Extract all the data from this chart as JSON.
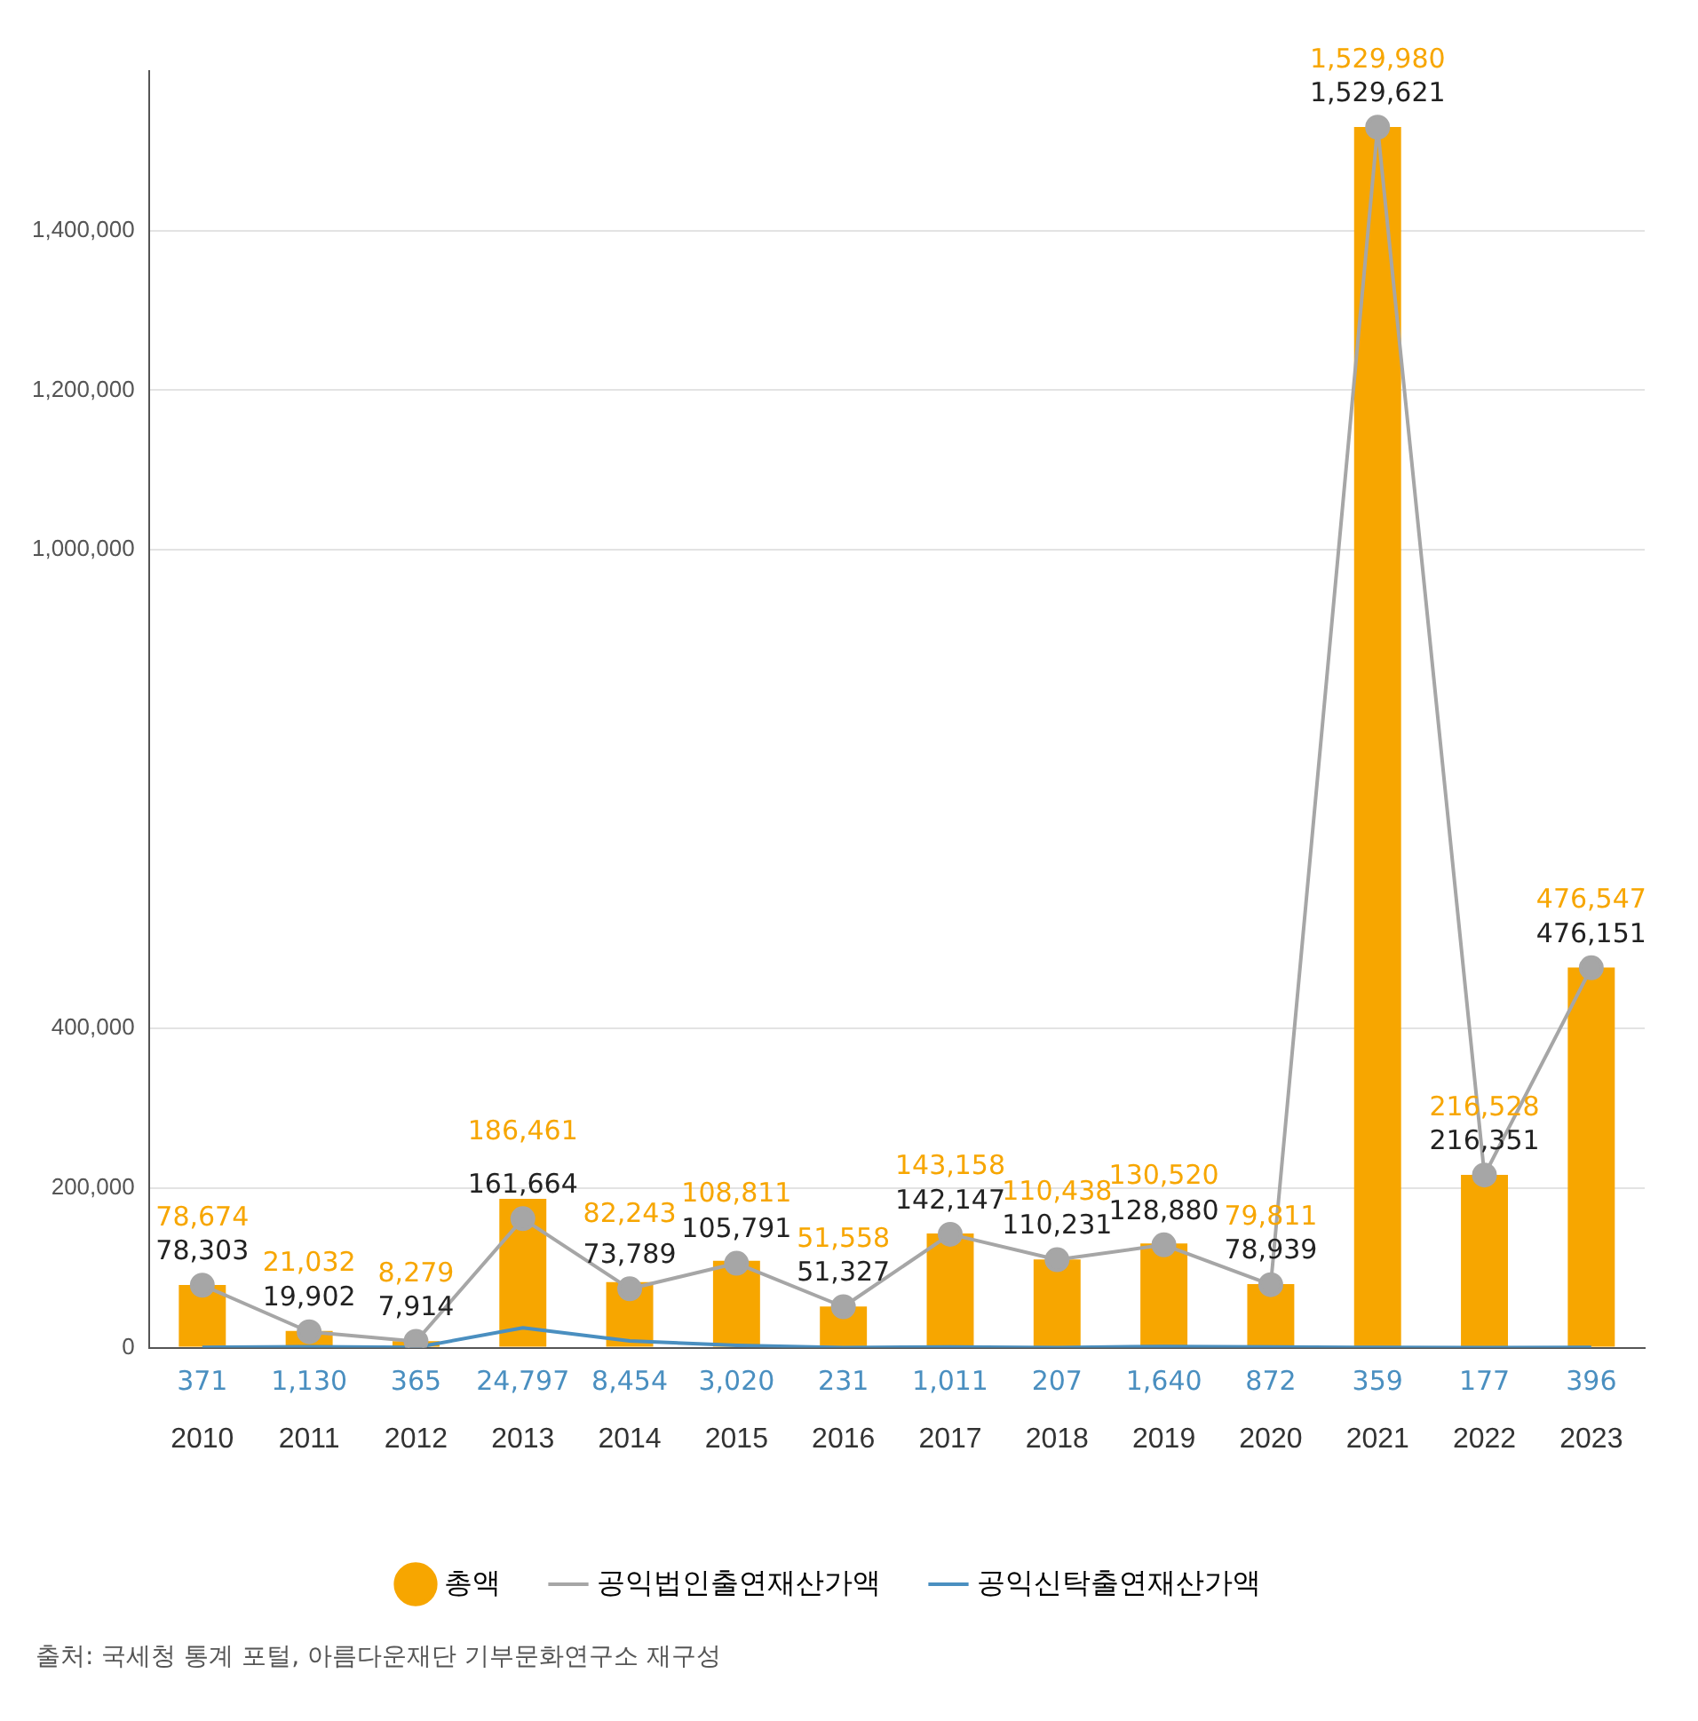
{
  "chart_data": {
    "type": "bar",
    "categories": [
      "2010",
      "2011",
      "2012",
      "2013",
      "2014",
      "2015",
      "2016",
      "2017",
      "2018",
      "2019",
      "2020",
      "2021",
      "2022",
      "2023"
    ],
    "series": [
      {
        "name": "총액",
        "color": "#f7a600",
        "values": [
          78674,
          21032,
          8279,
          186461,
          82243,
          108811,
          51558,
          143158,
          110438,
          130520,
          79811,
          1529980,
          216528,
          476547
        ],
        "value_labels": [
          "78,674",
          "21,032",
          "8,279",
          "186,461",
          "82,243",
          "108,811",
          "51,558",
          "143,158",
          "110,438",
          "130,520",
          "79,811",
          "1,529,980",
          "216,528",
          "476,547"
        ]
      },
      {
        "name": "공익법인출연재산가액",
        "type": "line",
        "color": "#a6a6a6",
        "marker": "circle",
        "values": [
          78303,
          19902,
          7914,
          161664,
          73789,
          105791,
          51327,
          142147,
          110231,
          128880,
          78939,
          1529621,
          216351,
          476151
        ],
        "value_labels": [
          "78,303",
          "19,902",
          "7,914",
          "161,664",
          "73,789",
          "105,791",
          "51,327",
          "142,147",
          "110,231",
          "128,880",
          "78,939",
          "1,529,621",
          "216,351",
          "476,151"
        ]
      },
      {
        "name": "공익신탁출연재산가액",
        "type": "line",
        "color": "#4a8fc0",
        "marker": "none",
        "values": [
          371,
          1130,
          365,
          24797,
          8454,
          3020,
          231,
          1011,
          207,
          1640,
          872,
          359,
          177,
          396
        ],
        "value_labels": [
          "371",
          "1,130",
          "365",
          "24,797",
          "8,454",
          "3,020",
          "231",
          "1,011",
          "207",
          "1,640",
          "872",
          "359",
          "177",
          "396"
        ]
      }
    ],
    "ylim": [
      0,
      1600000
    ],
    "yticks": [
      0,
      {
        "value": 200000,
        "label": "200,000"
      },
      {
        "value": 400000,
        "label": "400,000"
      },
      {
        "value": 1000000,
        "label": "1,000,000"
      },
      {
        "value": 1200000,
        "label": "1,200,000"
      },
      {
        "value": 1400000,
        "label": "1,400,000"
      }
    ],
    "grid": "y",
    "legend": "bottom",
    "annotations": [
      "출처: 국세청 통계 포털, 아름다운재단 기부문화연구소 재구성"
    ]
  }
}
